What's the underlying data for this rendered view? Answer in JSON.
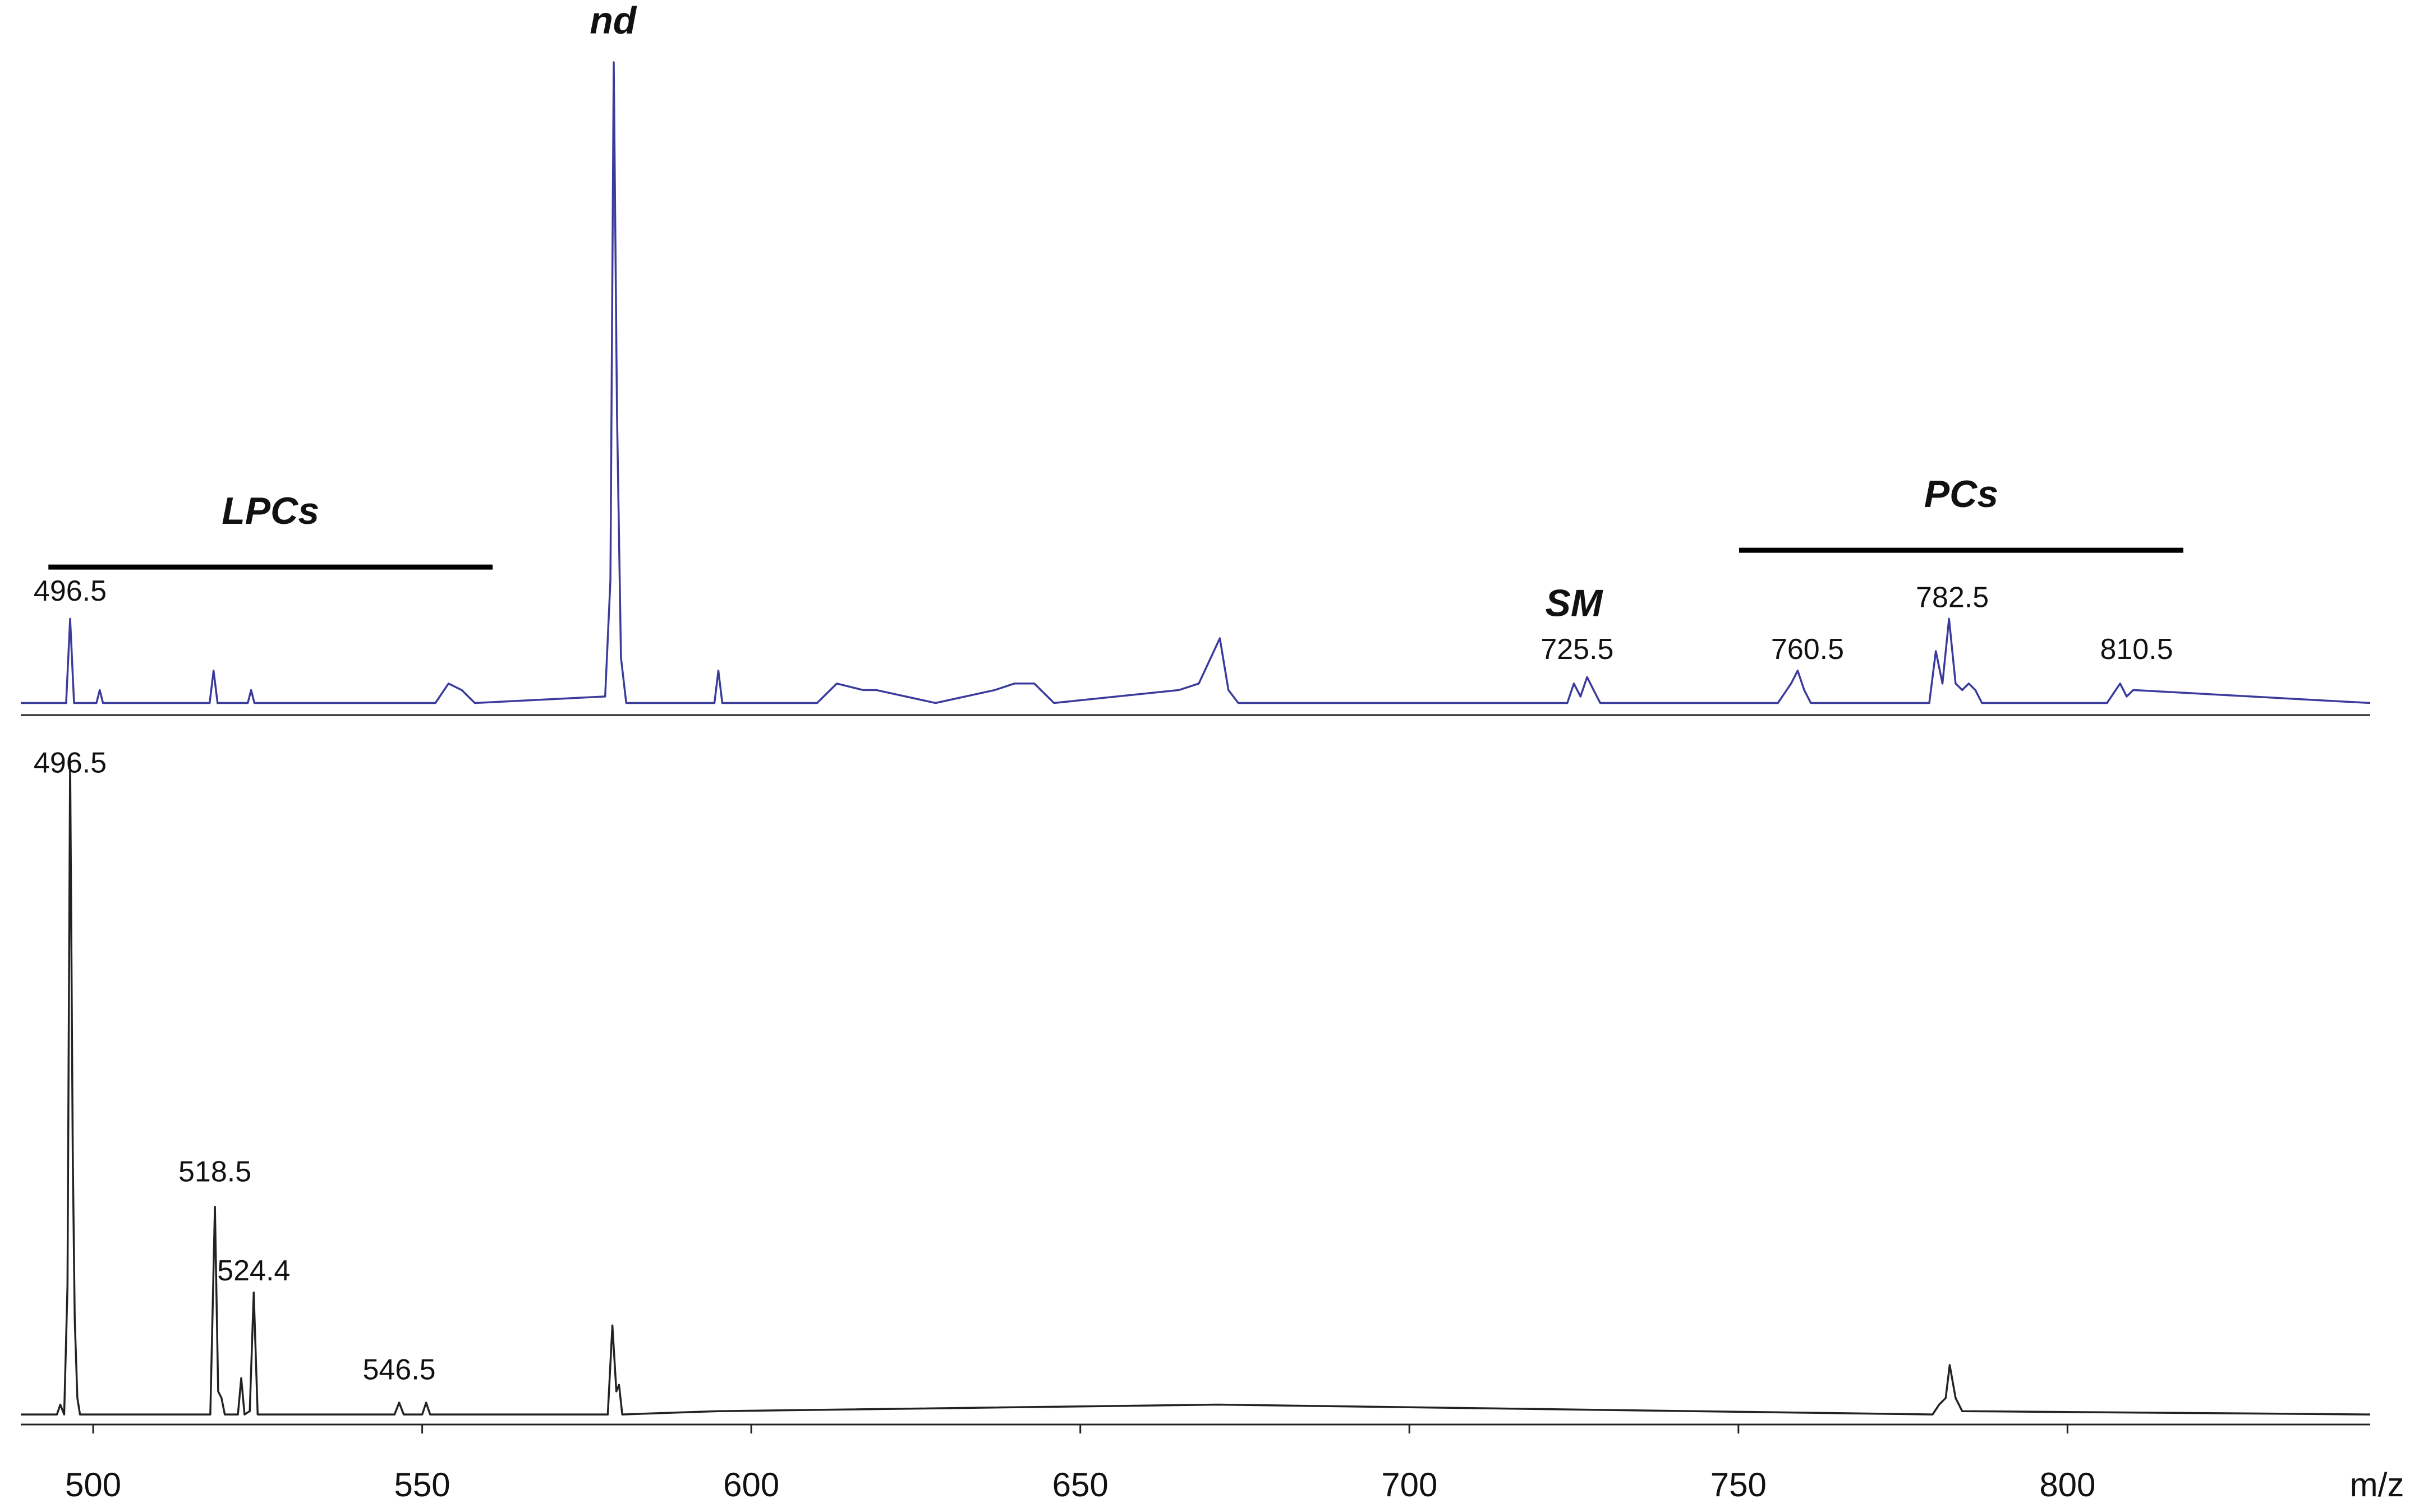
{
  "chart_data": {
    "type": "line",
    "xlabel": "m/z",
    "xlim": [
      489,
      846
    ],
    "xticks": [
      500,
      550,
      600,
      650,
      700,
      750,
      800
    ],
    "panels": [
      {
        "color": "#3b3b9c",
        "ylim": [
          0,
          100
        ],
        "x": [
          489,
          495.9,
          496.5,
          497.1,
          500.5,
          501,
          501.5,
          517.7,
          518.3,
          518.9,
          523.5,
          524,
          524.5,
          552,
          554,
          556,
          558,
          577.8,
          578.6,
          579.1,
          579.6,
          580.2,
          581,
          594.4,
          595,
          595.6,
          610,
          613,
          617,
          619,
          628,
          637,
          640,
          643,
          646,
          665,
          668,
          671.2,
          672.5,
          674,
          724,
          725,
          726,
          727,
          728,
          729,
          756,
          758,
          759,
          760,
          761,
          779,
          780,
          781,
          782,
          783,
          784,
          785,
          786,
          787,
          806,
          808,
          809,
          810,
          846
        ],
        "values": [
          1,
          1,
          14,
          1,
          1,
          3,
          1,
          1,
          6,
          1,
          1,
          3,
          1,
          1,
          4,
          3,
          1,
          2,
          20,
          100,
          46,
          8,
          1,
          1,
          6,
          1,
          1,
          4,
          3,
          3,
          1,
          3,
          4,
          4,
          1,
          3,
          4,
          11,
          3,
          1,
          1,
          4,
          2,
          5,
          3,
          1,
          1,
          4,
          6,
          3,
          1,
          1,
          9,
          4,
          14,
          4,
          3,
          4,
          3,
          1,
          1,
          4,
          2,
          3,
          1
        ],
        "annotations": [
          {
            "text": "496.5",
            "x": 496.5,
            "y": 18,
            "style": "plain"
          },
          {
            "text": "nd",
            "x": 579,
            "y": 106,
            "style": "bold"
          },
          {
            "text": "SM",
            "x": 725,
            "y": 16,
            "style": "bold"
          },
          {
            "text": "725.5",
            "x": 725.5,
            "y": 9,
            "style": "plain"
          },
          {
            "text": "760.5",
            "x": 760.5,
            "y": 9,
            "style": "plain"
          },
          {
            "text": "782.5",
            "x": 782.5,
            "y": 17,
            "style": "plain"
          },
          {
            "text": "810.5",
            "x": 810.5,
            "y": 9,
            "style": "plain"
          }
        ],
        "groups": [
          {
            "text": "LPCs",
            "x": [
              493.2,
              560.7
            ],
            "y": 22
          },
          {
            "text": "PCs",
            "x": [
              750.1,
              817.6
            ],
            "y": 24.6
          }
        ]
      },
      {
        "color": "#222222",
        "ylim": [
          0,
          100
        ],
        "x": [
          489,
          494.5,
          495,
          495.6,
          496.1,
          496.5,
          496.9,
          497.2,
          497.6,
          498,
          517.8,
          518.5,
          519,
          519.5,
          520,
          522,
          522.5,
          523,
          523.8,
          524.4,
          525,
          545.8,
          546.5,
          547.2,
          550,
          550.6,
          551.2,
          578.2,
          578.9,
          579.5,
          579.9,
          580.4,
          595,
          671,
          779.5,
          780.5,
          781.5,
          782.1,
          783,
          784,
          846
        ],
        "values": [
          0.5,
          0.5,
          2,
          0.5,
          20,
          100,
          40,
          15,
          3,
          0.5,
          0.5,
          32,
          4,
          3,
          0.5,
          0.5,
          6,
          0.5,
          1,
          19,
          0.5,
          0.5,
          2.3,
          0.5,
          0.5,
          2.3,
          0.5,
          0.5,
          14,
          4,
          5,
          0.5,
          1,
          2,
          0.5,
          2,
          3,
          8,
          3,
          1,
          0.5
        ],
        "annotations": [
          {
            "text": "496.5",
            "x": 496.5,
            "y": 99,
            "style": "plain"
          },
          {
            "text": "518.5",
            "x": 518.5,
            "y": 37,
            "style": "plain"
          },
          {
            "text": "524.4",
            "x": 524.4,
            "y": 22,
            "style": "plain"
          },
          {
            "text": "546.5",
            "x": 546.5,
            "y": 7,
            "style": "plain"
          }
        ],
        "groups": []
      }
    ]
  }
}
